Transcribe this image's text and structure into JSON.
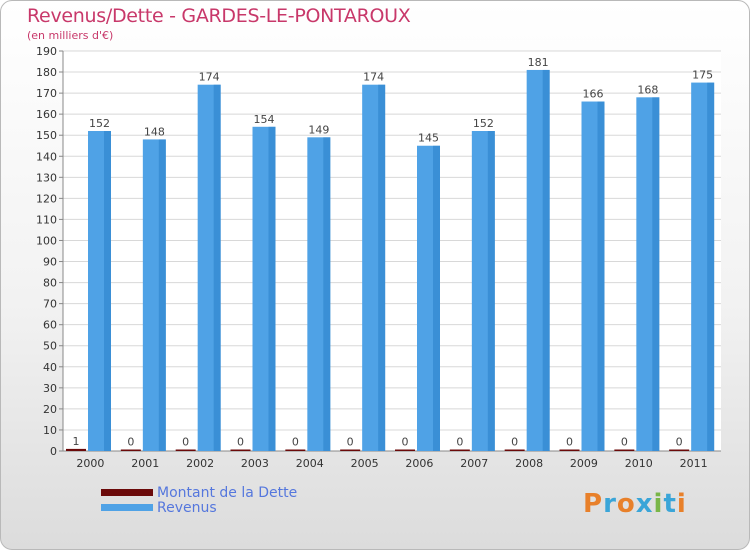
{
  "chart_data": {
    "type": "bar",
    "title": "Revenus/Dette - GARDES-LE-PONTAROUX",
    "subtitle": "(en milliers d'€)",
    "categories": [
      "2000",
      "2001",
      "2002",
      "2003",
      "2004",
      "2005",
      "2006",
      "2007",
      "2008",
      "2009",
      "2010",
      "2011"
    ],
    "series": [
      {
        "name": "Montant de la Dette",
        "color": "#6b0a0a",
        "values": [
          1,
          0,
          0,
          0,
          0,
          0,
          0,
          0,
          0,
          0,
          0,
          0
        ]
      },
      {
        "name": "Revenus",
        "color": "#4fa2e6",
        "values": [
          152,
          148,
          174,
          154,
          149,
          174,
          145,
          152,
          181,
          166,
          168,
          175
        ]
      }
    ],
    "ylim": [
      0,
      190
    ],
    "yticks": [
      0,
      10,
      20,
      30,
      40,
      50,
      60,
      70,
      80,
      90,
      100,
      110,
      120,
      130,
      140,
      150,
      160,
      170,
      180,
      190
    ],
    "grid": true,
    "legend": "bottom-left"
  },
  "logo": {
    "letters": [
      "P",
      "r",
      "o",
      "x",
      "i",
      "t",
      "i"
    ],
    "colors": [
      "#e8802a",
      "#3aa5d8",
      "#e8802a",
      "#3aa5d8",
      "#7ab648",
      "#3aa5d8",
      "#e8802a"
    ]
  }
}
